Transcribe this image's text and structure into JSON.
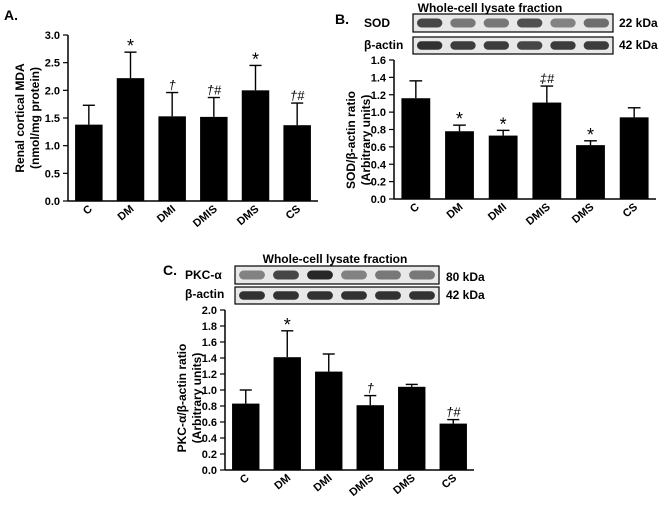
{
  "charts": {
    "A": {
      "panel_label": "A.",
      "ylabel_line1": "Renal cortical MDA",
      "ylabel_line2": "(nmol/mg protein)"
    },
    "B": {
      "panel_label": "B.",
      "blot_title": "Whole-cell lysate fraction",
      "blot_rows": [
        {
          "label": "SOD",
          "kda": "22 kDa"
        },
        {
          "label": "β-actin",
          "kda": "42 kDa"
        }
      ],
      "ylabel_line1": "SOD/β-actin ratio",
      "ylabel_line2": "(Arbitrary units)"
    },
    "C": {
      "panel_label": "C.",
      "blot_title": "Whole-cell lysate fraction",
      "blot_rows": [
        {
          "label": "PKC-α",
          "kda": "80 kDa"
        },
        {
          "label": "β-actin",
          "kda": "42 kDa"
        }
      ],
      "ylabel_line1": "PKC-α/β-actin ratio",
      "ylabel_line2": "(Arbitrary units)"
    }
  },
  "chart_data": [
    {
      "type": "bar",
      "panel": "A",
      "categories": [
        "C",
        "DM",
        "DMI",
        "DMIS",
        "DMS",
        "CS"
      ],
      "values": [
        1.38,
        2.22,
        1.53,
        1.52,
        2.0,
        1.37
      ],
      "errors": [
        0.35,
        0.47,
        0.43,
        0.35,
        0.45,
        0.4
      ],
      "annotations": [
        "",
        "*",
        "†",
        "†#",
        "*",
        "†#"
      ],
      "ylim": [
        0,
        3.0
      ],
      "yticks": [
        0.0,
        0.5,
        1.0,
        1.5,
        2.0,
        2.5,
        3.0
      ],
      "tick_labels": [
        "0.0",
        "0.5",
        "1.0",
        "1.5",
        "2.0",
        "2.5",
        "3.0"
      ],
      "ylabel": "Renal cortical MDA (nmol/mg protein)"
    },
    {
      "type": "bar",
      "panel": "B",
      "categories": [
        "C",
        "DM",
        "DMI",
        "DMIS",
        "DMS",
        "CS"
      ],
      "values": [
        1.16,
        0.78,
        0.73,
        1.11,
        0.62,
        0.94
      ],
      "errors": [
        0.2,
        0.07,
        0.06,
        0.19,
        0.05,
        0.11
      ],
      "annotations": [
        "",
        "*",
        "*",
        "‡#",
        "*",
        ""
      ],
      "ylim": [
        0,
        1.6
      ],
      "yticks": [
        0.0,
        0.2,
        0.4,
        0.6,
        0.8,
        1.0,
        1.2,
        1.4,
        1.6
      ],
      "tick_labels": [
        "0.0",
        "0.2",
        "0.4",
        "0.6",
        "0.8",
        "1.0",
        "1.2",
        "1.4",
        "1.6"
      ],
      "ylabel": "SOD/β-actin ratio (Arbitrary units)",
      "band_intensity": {
        "SOD": [
          0.8,
          0.55,
          0.55,
          0.75,
          0.5,
          0.6
        ],
        "β-actin": [
          0.9,
          0.85,
          0.85,
          0.8,
          0.85,
          0.85
        ]
      }
    },
    {
      "type": "bar",
      "panel": "C",
      "categories": [
        "C",
        "DM",
        "DMI",
        "DMIS",
        "DMS",
        "CS"
      ],
      "values": [
        0.83,
        1.41,
        1.23,
        0.81,
        1.04,
        0.58
      ],
      "errors": [
        0.17,
        0.33,
        0.22,
        0.12,
        0.03,
        0.05
      ],
      "annotations": [
        "",
        "*",
        "",
        "†",
        "",
        "†#"
      ],
      "ylim": [
        0,
        2.0
      ],
      "yticks": [
        0.0,
        0.2,
        0.4,
        0.6,
        0.8,
        1.0,
        1.2,
        1.4,
        1.6,
        1.8,
        2.0
      ],
      "tick_labels": [
        "0.0",
        "0.2",
        "0.4",
        "0.6",
        "0.8",
        "1.0",
        "1.2",
        "1.4",
        "1.6",
        "1.8",
        "2.0"
      ],
      "ylabel": "PKC-α/β-actin ratio (Arbitrary units)",
      "band_intensity": {
        "PKC-α": [
          0.5,
          0.8,
          0.95,
          0.5,
          0.55,
          0.55
        ],
        "β-actin": [
          0.9,
          0.9,
          0.9,
          0.9,
          0.9,
          0.9
        ]
      }
    }
  ]
}
